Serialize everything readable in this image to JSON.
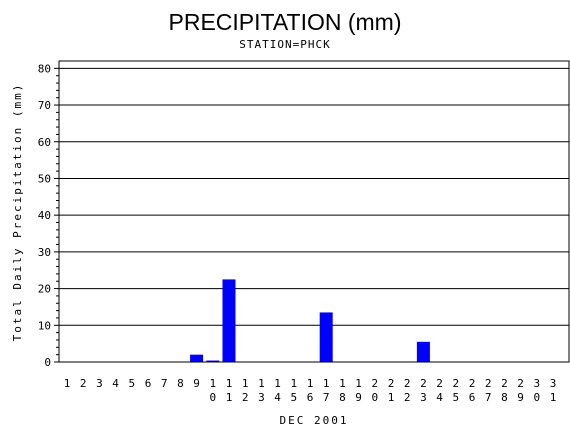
{
  "chart_data": {
    "type": "bar",
    "title": "PRECIPITATION (mm)",
    "subtitle": "STATION=PHCK",
    "xlabel": "DEC 2001",
    "ylabel": "Total Daily Precipitation (mm)",
    "ylim": [
      0,
      82
    ],
    "yticks": [
      0,
      10,
      20,
      30,
      40,
      50,
      60,
      70,
      80
    ],
    "grid": true,
    "bar_color": "#0000ff",
    "categories": [
      "1",
      "2",
      "3",
      "4",
      "5",
      "6",
      "7",
      "8",
      "9",
      "10",
      "11",
      "12",
      "13",
      "14",
      "15",
      "16",
      "17",
      "18",
      "19",
      "20",
      "21",
      "22",
      "23",
      "24",
      "25",
      "26",
      "27",
      "28",
      "29",
      "30",
      "31"
    ],
    "values": [
      0,
      0,
      0,
      0,
      0,
      0,
      0,
      0,
      2,
      0.4,
      22.5,
      0,
      0,
      0,
      0,
      0,
      13.5,
      0,
      0,
      0,
      0,
      0,
      5.5,
      0,
      0,
      0,
      0,
      0,
      0,
      0,
      0
    ]
  }
}
